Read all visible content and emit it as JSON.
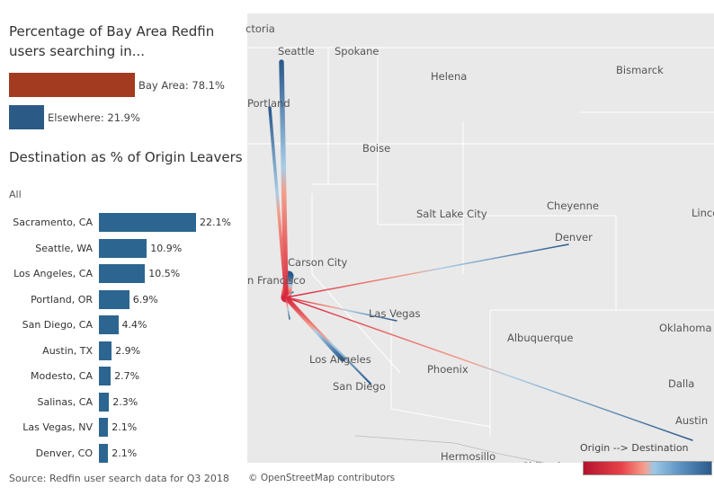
{
  "header": {
    "title": "Percentage of Bay Area Redfin users searching in..."
  },
  "split": [
    {
      "label": "Bay Area: 78.1%",
      "value": 78.1,
      "color": "#a33b20"
    },
    {
      "label": "Elsewhere: 21.9%",
      "value": 21.9,
      "color": "#2c5a87"
    }
  ],
  "destinations": {
    "title": "Destination as % of Origin Leavers",
    "filter": "All",
    "rows": [
      {
        "city": "Sacramento, CA",
        "pct": "22.1%",
        "value": 22.1
      },
      {
        "city": "Seattle, WA",
        "pct": "10.9%",
        "value": 10.9
      },
      {
        "city": "Los Angeles, CA",
        "pct": "10.5%",
        "value": 10.5
      },
      {
        "city": "Portland, OR",
        "pct": "6.9%",
        "value": 6.9
      },
      {
        "city": "San Diego, CA",
        "pct": "4.4%",
        "value": 4.4
      },
      {
        "city": "Austin, TX",
        "pct": "2.9%",
        "value": 2.9
      },
      {
        "city": "Modesto, CA",
        "pct": "2.7%",
        "value": 2.7
      },
      {
        "city": "Salinas, CA",
        "pct": "2.3%",
        "value": 2.3
      },
      {
        "city": "Las Vegas, NV",
        "pct": "2.1%",
        "value": 2.1
      },
      {
        "city": "Denver, CO",
        "pct": "2.1%",
        "value": 2.1
      }
    ]
  },
  "source": "Source: Redfin user search data for Q3 2018",
  "attribution": "© OpenStreetMap contributors",
  "map": {
    "labels": [
      "ctoria",
      "Seattle",
      "Spokane",
      "Helena",
      "Bismarck",
      "Portland",
      "Boise",
      "Cheyenne",
      "Salt Lake City",
      "Linco",
      "Denver",
      "Carson City",
      "n Francisco",
      "Las Vegas",
      "Oklahoma Ci",
      "Albuquerque",
      "Los Angeles",
      "Phoenix",
      "Dalla",
      "San Diego",
      "Austin",
      "Hermosillo",
      "Chihuahua"
    ],
    "legend_title": "Origin --> Destination",
    "origin_color": "#d7263d",
    "destination_color": "#2a5a8c"
  }
}
